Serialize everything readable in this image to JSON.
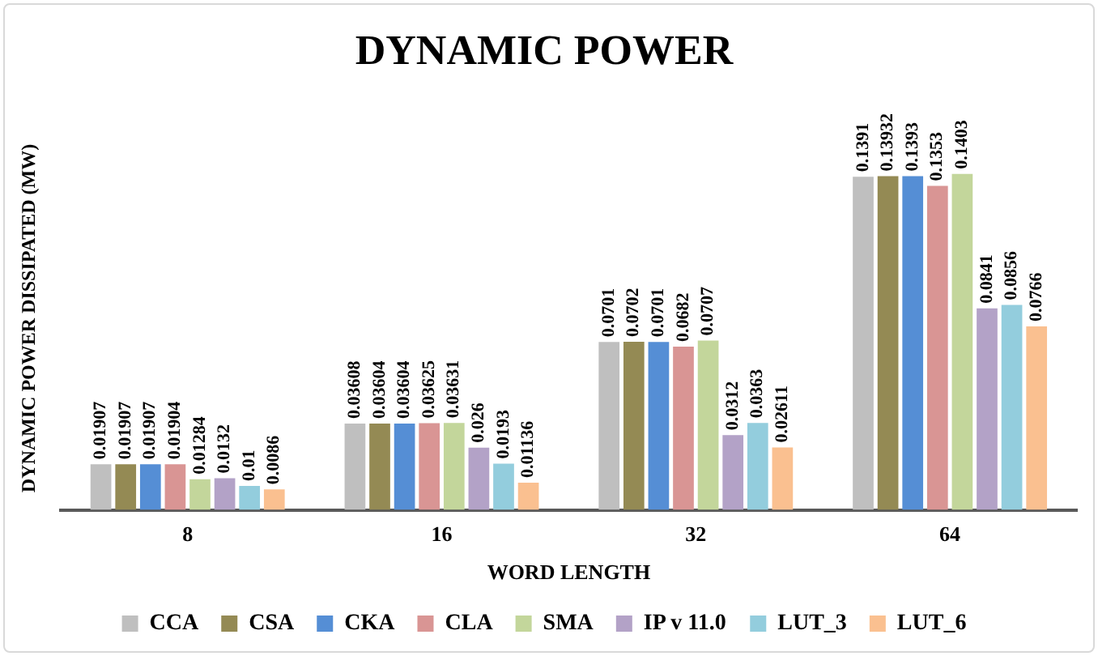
{
  "chart_data": {
    "type": "bar",
    "title": "DYNAMIC POWER",
    "xlabel": "WORD LENGTH",
    "ylabel": "DYNAMIC POWER DISSIPATED (MW)",
    "categories": [
      "8",
      "16",
      "32",
      "64"
    ],
    "series": [
      {
        "name": "CCA",
        "color": "#bfbfbf",
        "values": [
          0.01907,
          0.03608,
          0.0701,
          0.1391
        ]
      },
      {
        "name": "CSA",
        "color": "#948a54",
        "values": [
          0.01907,
          0.03604,
          0.0702,
          0.13932
        ]
      },
      {
        "name": "CKA",
        "color": "#558ed5",
        "values": [
          0.01907,
          0.03604,
          0.0701,
          0.1393
        ]
      },
      {
        "name": "CLA",
        "color": "#d99594",
        "values": [
          0.01904,
          0.03625,
          0.0682,
          0.1353
        ]
      },
      {
        "name": "SMA",
        "color": "#c3d69b",
        "values": [
          0.01284,
          0.03631,
          0.0707,
          0.1403
        ]
      },
      {
        "name": "IP v 11.0",
        "color": "#b3a2c7",
        "values": [
          0.0132,
          0.026,
          0.0312,
          0.0841
        ]
      },
      {
        "name": "LUT_3",
        "color": "#93cddd",
        "values": [
          0.01,
          0.0193,
          0.0363,
          0.0856
        ]
      },
      {
        "name": "LUT_6",
        "color": "#fac090",
        "values": [
          0.0086,
          0.01136,
          0.02611,
          0.0766
        ]
      }
    ],
    "data_labels": true,
    "grid": false,
    "legend": "bottom",
    "tick_labels": "x"
  }
}
